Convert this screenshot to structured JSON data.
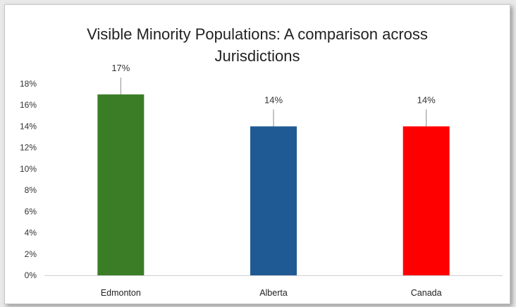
{
  "chart_data": {
    "type": "bar",
    "title_lines": [
      "Visible Minority Populations: A comparison across",
      "Jurisdictions"
    ],
    "categories": [
      "Edmonton",
      "Alberta",
      "Canada"
    ],
    "values": [
      17,
      14,
      14
    ],
    "data_labels": [
      "17%",
      "14%",
      "14%"
    ],
    "bar_colors": [
      "#3a7d26",
      "#1f5a94",
      "#ff0000"
    ],
    "y_ticks": [
      "0%",
      "2%",
      "4%",
      "6%",
      "8%",
      "10%",
      "12%",
      "14%",
      "16%",
      "18%"
    ],
    "ylim": [
      0,
      18
    ],
    "grid": false,
    "legend": "none"
  }
}
